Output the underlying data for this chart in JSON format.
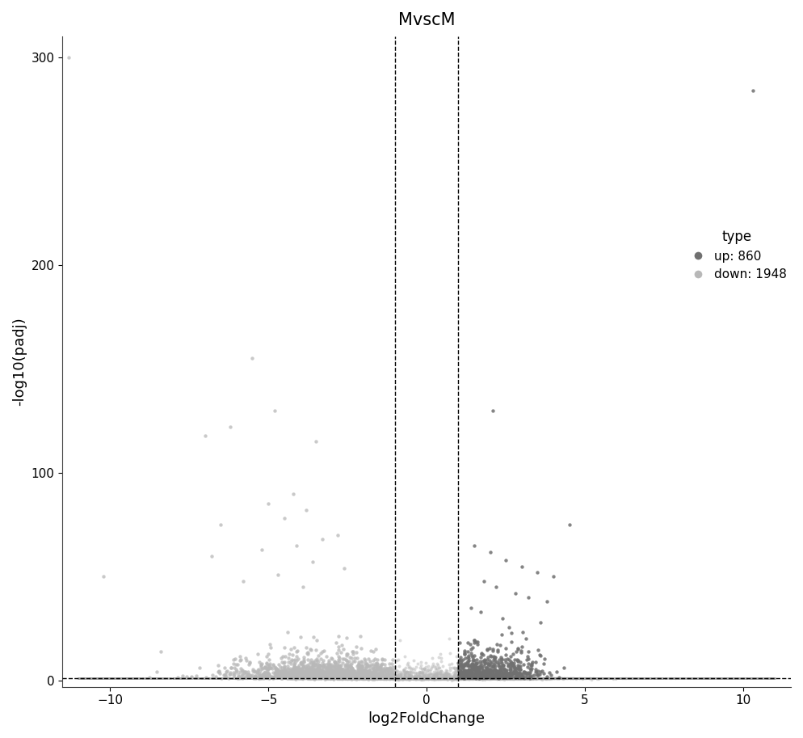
{
  "title": "MvscM",
  "xlabel": "log2FoldChange",
  "ylabel": "-log10(padj)",
  "xlim": [
    -11.5,
    11.5
  ],
  "ylim_bottom": -3,
  "ylim_top": 310,
  "yticks": [
    0,
    100,
    200,
    300
  ],
  "xticks": [
    -10,
    -5,
    0,
    5,
    10
  ],
  "hline_y": 1.3,
  "vline_x1": -1.0,
  "vline_x2": 1.0,
  "up_color": "#707070",
  "down_color": "#b8b8b8",
  "legend_title": "type",
  "legend_up": "up: 860",
  "legend_down": "down: 1948",
  "n_up": 860,
  "n_down": 1948,
  "seed": 42
}
